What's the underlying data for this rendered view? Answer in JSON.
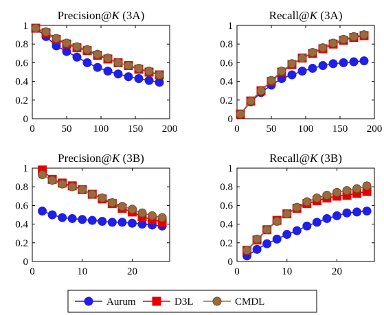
{
  "chart_data": [
    {
      "type": "line",
      "title": "Precision@K (3A)",
      "xlim": [
        0,
        200
      ],
      "ylim": [
        0,
        1
      ],
      "xticks": [
        0,
        50,
        100,
        150,
        200
      ],
      "yticks": [
        0,
        0.2,
        0.4,
        0.6,
        0.8,
        1
      ],
      "x": [
        5,
        20,
        35,
        50,
        65,
        80,
        95,
        110,
        125,
        140,
        155,
        170,
        185
      ],
      "series": [
        {
          "name": "Aurum",
          "values": [
            0.97,
            0.88,
            0.78,
            0.72,
            0.66,
            0.6,
            0.55,
            0.51,
            0.48,
            0.45,
            0.43,
            0.41,
            0.39
          ]
        },
        {
          "name": "D3L",
          "values": [
            0.97,
            0.92,
            0.85,
            0.8,
            0.76,
            0.73,
            0.68,
            0.64,
            0.6,
            0.57,
            0.53,
            0.5,
            0.47
          ]
        },
        {
          "name": "CMDL",
          "values": [
            0.97,
            0.93,
            0.86,
            0.81,
            0.77,
            0.74,
            0.69,
            0.65,
            0.6,
            0.57,
            0.54,
            0.51,
            0.47
          ]
        }
      ],
      "grid": false
    },
    {
      "type": "line",
      "title": "Recall@K (3A)",
      "xlim": [
        0,
        200
      ],
      "ylim": [
        0,
        1
      ],
      "xticks": [
        0,
        50,
        100,
        150,
        200
      ],
      "yticks": [
        0,
        0.2,
        0.4,
        0.6,
        0.8,
        1
      ],
      "x": [
        5,
        20,
        35,
        50,
        65,
        80,
        95,
        110,
        125,
        140,
        155,
        170,
        185
      ],
      "series": [
        {
          "name": "Aurum",
          "values": [
            0.05,
            0.18,
            0.28,
            0.36,
            0.43,
            0.47,
            0.51,
            0.54,
            0.57,
            0.59,
            0.6,
            0.61,
            0.62
          ]
        },
        {
          "name": "D3L",
          "values": [
            0.05,
            0.19,
            0.3,
            0.4,
            0.5,
            0.58,
            0.65,
            0.7,
            0.75,
            0.8,
            0.84,
            0.87,
            0.89
          ]
        },
        {
          "name": "CMDL",
          "values": [
            0.05,
            0.19,
            0.3,
            0.41,
            0.51,
            0.59,
            0.65,
            0.71,
            0.76,
            0.81,
            0.85,
            0.88,
            0.9
          ]
        }
      ],
      "grid": false
    },
    {
      "type": "line",
      "title": "Precision@K (3B)",
      "xlim": [
        0,
        27.5
      ],
      "ylim": [
        0,
        1
      ],
      "xticks": [
        0,
        10,
        20
      ],
      "yticks": [
        0,
        0.2,
        0.4,
        0.6,
        0.8,
        1
      ],
      "x": [
        2,
        4,
        6,
        8,
        10,
        12,
        14,
        16,
        18,
        20,
        22,
        24,
        26
      ],
      "series": [
        {
          "name": "Aurum",
          "values": [
            0.54,
            0.5,
            0.47,
            0.46,
            0.45,
            0.44,
            0.43,
            0.42,
            0.42,
            0.41,
            0.4,
            0.39,
            0.38
          ]
        },
        {
          "name": "D3L",
          "values": [
            0.98,
            0.88,
            0.84,
            0.81,
            0.77,
            0.72,
            0.67,
            0.62,
            0.57,
            0.53,
            0.48,
            0.45,
            0.42
          ]
        },
        {
          "name": "CMDL",
          "values": [
            0.93,
            0.87,
            0.83,
            0.8,
            0.77,
            0.72,
            0.68,
            0.63,
            0.59,
            0.56,
            0.52,
            0.49,
            0.47
          ]
        }
      ],
      "grid": false
    },
    {
      "type": "line",
      "title": "Recall@K (3B)",
      "xlim": [
        0,
        27.5
      ],
      "ylim": [
        0,
        1
      ],
      "xticks": [
        0,
        10,
        20
      ],
      "yticks": [
        0,
        0.2,
        0.4,
        0.6,
        0.8,
        1
      ],
      "x": [
        2,
        4,
        6,
        8,
        10,
        12,
        14,
        16,
        18,
        20,
        22,
        24,
        26
      ],
      "series": [
        {
          "name": "Aurum",
          "values": [
            0.06,
            0.13,
            0.19,
            0.24,
            0.29,
            0.33,
            0.38,
            0.42,
            0.46,
            0.49,
            0.52,
            0.53,
            0.54
          ]
        },
        {
          "name": "D3L",
          "values": [
            0.12,
            0.23,
            0.34,
            0.44,
            0.51,
            0.57,
            0.62,
            0.65,
            0.68,
            0.7,
            0.71,
            0.73,
            0.75
          ]
        },
        {
          "name": "CMDL",
          "values": [
            0.12,
            0.24,
            0.34,
            0.43,
            0.51,
            0.58,
            0.64,
            0.68,
            0.71,
            0.74,
            0.76,
            0.78,
            0.81
          ]
        }
      ],
      "grid": false
    }
  ],
  "legend": {
    "placement": "bottom-center",
    "entries": [
      {
        "name": "Aurum",
        "color": "#1f1fe6",
        "marker": "circle"
      },
      {
        "name": "D3L",
        "color": "#e60000",
        "marker": "square"
      },
      {
        "name": "CMDL",
        "color": "#9b6b3e",
        "marker": "circle",
        "edge": "#6b4a2a"
      }
    ]
  },
  "styles": {
    "Aurum": {
      "color": "#1f1fe6",
      "marker": "circle"
    },
    "D3L": {
      "color": "#e60000",
      "marker": "square"
    },
    "CMDL": {
      "color": "#9b6b3e",
      "marker": "circle",
      "edge": "#6b4a2a"
    }
  }
}
